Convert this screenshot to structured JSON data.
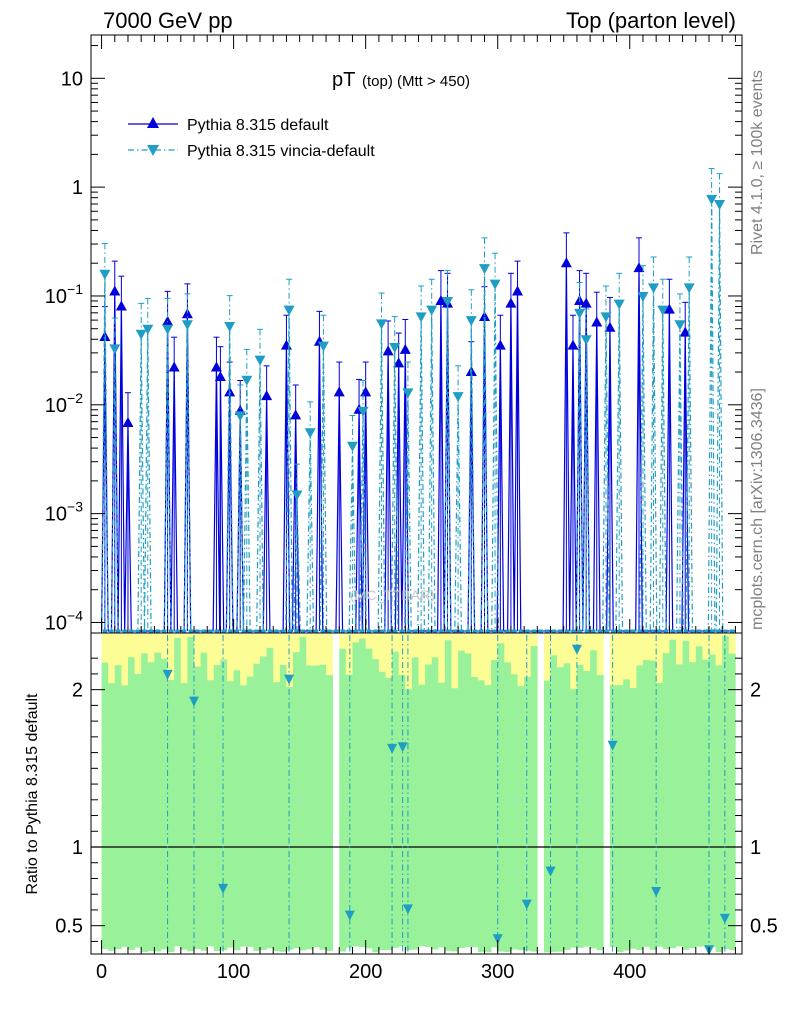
{
  "header": {
    "left": "7000 GeV pp",
    "right": "Top (parton level)"
  },
  "side_text": {
    "rivet": "Rivet 4.1.0, ≥ 100k events",
    "mcplots": "mcplots.cern.ch [arXiv:1306.3436]"
  },
  "watermark": "(MC_TTBAR)",
  "ratio_ylabel": "Ratio to Pythia 8.315 default",
  "colors": {
    "default": "#0000dd",
    "vincia": "#1e9ec4",
    "band_green": "#99f299",
    "band_yellow": "#fdfd96"
  },
  "chart_data": [
    {
      "type": "line",
      "title": "pT (top) (Mtt > 450)",
      "title_main": "pT",
      "title_sub": "(top) (Mtt > 450)",
      "xlabel": "",
      "ylabel": "",
      "yscale": "log",
      "xlim": [
        -8,
        485
      ],
      "ylim": [
        8e-05,
        25
      ],
      "x_ticks": [
        "0",
        "100",
        "200",
        "300",
        "400"
      ],
      "y_ticks": [
        {
          "base": "10",
          "exp": "-4"
        },
        {
          "base": "10",
          "exp": "-3"
        },
        {
          "base": "10",
          "exp": "-2"
        },
        {
          "base": "10",
          "exp": "-1"
        },
        {
          "base": "1",
          "exp": ""
        },
        {
          "base": "10",
          "exp": ""
        }
      ],
      "legend_position": "top-left",
      "series": [
        {
          "name": "Pythia 8.315 default",
          "style": "solid",
          "marker": "triangle-up",
          "points": [
            [
              2.5,
              0.042
            ],
            [
              10,
              0.11
            ],
            [
              15,
              0.08
            ],
            [
              20,
              0.0068
            ],
            [
              50,
              0.058
            ],
            [
              55,
              0.022
            ],
            [
              65,
              0.068
            ],
            [
              87,
              0.022
            ],
            [
              90,
              0.018
            ],
            [
              97,
              0.013
            ],
            [
              105,
              0.0088
            ],
            [
              125,
              0.012
            ],
            [
              140,
              0.035
            ],
            [
              147,
              0.008
            ],
            [
              165,
              0.038
            ],
            [
              180,
              0.013
            ],
            [
              195,
              0.009
            ],
            [
              200,
              0.013
            ],
            [
              217,
              0.031
            ],
            [
              225,
              0.024
            ],
            [
              230,
              0.032
            ],
            [
              257,
              0.09
            ],
            [
              262,
              0.085
            ],
            [
              280,
              0.02
            ],
            [
              290,
              0.064
            ],
            [
              302,
              0.035
            ],
            [
              310,
              0.085
            ],
            [
              315,
              0.11
            ],
            [
              352,
              0.2
            ],
            [
              357,
              0.035
            ],
            [
              362,
              0.09
            ],
            [
              367,
              0.085
            ],
            [
              375,
              0.057
            ],
            [
              385,
              0.051
            ],
            [
              407,
              0.18
            ],
            [
              430,
              0.075
            ],
            [
              442,
              0.046
            ]
          ]
        },
        {
          "name": "Pythia 8.315 vincia-default",
          "style": "dashdot",
          "marker": "triangle-down",
          "points": [
            [
              2.5,
              0.16
            ],
            [
              10,
              0.033
            ],
            [
              30,
              0.045
            ],
            [
              35,
              0.05
            ],
            [
              50,
              0.05
            ],
            [
              65,
              0.055
            ],
            [
              97,
              0.053
            ],
            [
              105,
              0.008
            ],
            [
              110,
              0.017
            ],
            [
              120,
              0.026
            ],
            [
              142,
              0.075
            ],
            [
              148,
              0.0015
            ],
            [
              158,
              0.0056
            ],
            [
              168,
              0.035
            ],
            [
              190,
              0.0042
            ],
            [
              198,
              0.0088
            ],
            [
              212,
              0.056
            ],
            [
              222,
              0.034
            ],
            [
              232,
              0.013
            ],
            [
              242,
              0.065
            ],
            [
              250,
              0.075
            ],
            [
              262,
              0.09
            ],
            [
              270,
              0.012
            ],
            [
              280,
              0.06
            ],
            [
              290,
              0.18
            ],
            [
              298,
              0.13
            ],
            [
              362,
              0.07
            ],
            [
              367,
              0.04
            ],
            [
              382,
              0.065
            ],
            [
              392,
              0.085
            ],
            [
              410,
              0.1
            ],
            [
              418,
              0.12
            ],
            [
              425,
              0.075
            ],
            [
              438,
              0.055
            ],
            [
              445,
              0.12
            ],
            [
              462,
              0.78
            ],
            [
              468,
              0.7
            ]
          ]
        }
      ]
    },
    {
      "type": "line",
      "title": "",
      "xlabel": "",
      "ylabel": "Ratio to Pythia 8.315 default",
      "xlim": [
        -8,
        485
      ],
      "ylim": [
        0.32,
        2.36
      ],
      "y_ticks": [
        "0.5",
        "1",
        "2"
      ],
      "reference_line": 1,
      "series": [
        {
          "name": "vincia / default",
          "points": [
            [
              50,
              2.1
            ],
            [
              70,
              1.93
            ],
            [
              92,
              0.74
            ],
            [
              142,
              2.07
            ],
            [
              188,
              0.57
            ],
            [
              220,
              1.63
            ],
            [
              228,
              1.64
            ],
            [
              232,
              0.61
            ],
            [
              300,
              0.42
            ],
            [
              322,
              0.64
            ],
            [
              340,
              0.85
            ],
            [
              360,
              2.26
            ],
            [
              387,
              1.65
            ],
            [
              420,
              0.72
            ],
            [
              460,
              0.35
            ],
            [
              472,
              0.55
            ]
          ]
        }
      ]
    }
  ]
}
